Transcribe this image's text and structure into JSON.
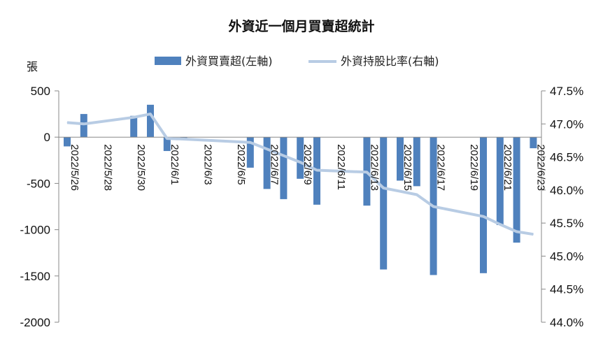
{
  "chart_data": {
    "type": "bar+line",
    "title": "外資近一個月買賣超統計",
    "y_left_unit": "張",
    "y_left_range": [
      -2000,
      500
    ],
    "y_left_ticks": [
      "500",
      "0",
      "-500",
      "-1000",
      "-1500",
      "-2000"
    ],
    "y_right_range": [
      44.0,
      47.5
    ],
    "y_right_ticks": [
      "47.5%",
      "47.0%",
      "46.5%",
      "46.0%",
      "45.5%",
      "45.0%",
      "44.5%",
      "44.0%"
    ],
    "x_tick_labels": [
      "2022/5/26",
      "2022/5/28",
      "2022/5/30",
      "2022/6/1",
      "2022/6/3",
      "2022/6/5",
      "2022/6/7",
      "2022/6/9",
      "2022/6/11",
      "2022/6/13",
      "2022/6/15",
      "2022/6/17",
      "2022/6/19",
      "2022/6/21",
      "2022/6/23"
    ],
    "categories": [
      "2022/5/26",
      "2022/5/27",
      "2022/5/28",
      "2022/5/29",
      "2022/5/30",
      "2022/5/31",
      "2022/6/1",
      "2022/6/2",
      "2022/6/3",
      "2022/6/4",
      "2022/6/5",
      "2022/6/6",
      "2022/6/7",
      "2022/6/8",
      "2022/6/9",
      "2022/6/10",
      "2022/6/11",
      "2022/6/12",
      "2022/6/13",
      "2022/6/14",
      "2022/6/15",
      "2022/6/16",
      "2022/6/17",
      "2022/6/18",
      "2022/6/19",
      "2022/6/20",
      "2022/6/21",
      "2022/6/22",
      "2022/6/23"
    ],
    "series": [
      {
        "name": "外資買賣超(左軸)",
        "axis": "left",
        "chart": "bar",
        "color": "#4F81BD",
        "values": [
          -100,
          250,
          null,
          null,
          230,
          350,
          -150,
          -30,
          null,
          null,
          null,
          -330,
          -560,
          -670,
          -450,
          -730,
          null,
          null,
          -740,
          -1430,
          -470,
          -530,
          -1490,
          null,
          null,
          -1470,
          -950,
          -1140,
          -120
        ]
      },
      {
        "name": "外資持股比率(右軸)",
        "axis": "right",
        "chart": "line",
        "color": "#B8CCE4",
        "values": [
          47.02,
          47.0,
          null,
          null,
          47.1,
          47.15,
          46.78,
          46.77,
          null,
          null,
          null,
          46.72,
          46.62,
          46.52,
          46.42,
          46.3,
          null,
          null,
          46.27,
          46.03,
          45.98,
          45.93,
          45.75,
          null,
          null,
          45.6,
          45.48,
          45.37,
          45.33
        ]
      }
    ],
    "legend_position": "top-center",
    "grid": false
  }
}
